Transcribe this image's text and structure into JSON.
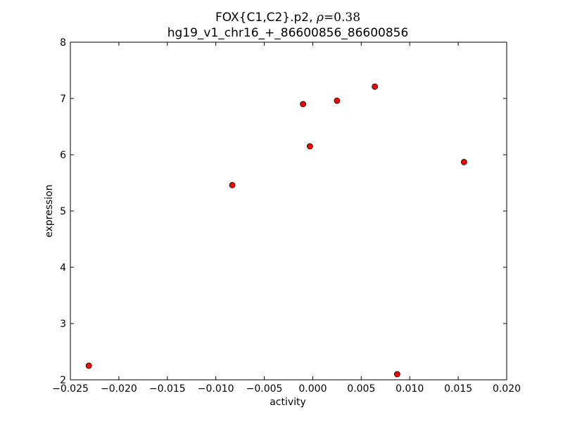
{
  "chart_data": {
    "type": "scatter",
    "title": "FOX{C1,C2}.p2, ρ=0.38",
    "title_parts": {
      "prefix": "FOX{C1,C2}.p2, ",
      "rho_symbol": "ρ",
      "equals": "=",
      "rho_value": "0.38"
    },
    "subtitle": "hg19_v1_chr16_+_86600856_86600856",
    "xlabel": "activity",
    "ylabel": "expression",
    "xlim": [
      -0.025,
      0.02
    ],
    "ylim": [
      2,
      8
    ],
    "x_ticks": [
      -0.025,
      -0.02,
      -0.015,
      -0.01,
      -0.005,
      0.0,
      0.005,
      0.01,
      0.015,
      0.02
    ],
    "x_tick_labels": [
      "−0.025",
      "−0.020",
      "−0.015",
      "−0.010",
      "−0.005",
      "0.000",
      "0.005",
      "0.010",
      "0.015",
      "0.020"
    ],
    "y_ticks": [
      2,
      3,
      4,
      5,
      6,
      7,
      8
    ],
    "y_tick_labels": [
      "2",
      "3",
      "4",
      "5",
      "6",
      "7",
      "8"
    ],
    "grid": false,
    "marker_color": "#ff0000",
    "marker_edge_color": "#000000",
    "points": [
      {
        "x": -0.0231,
        "y": 2.25
      },
      {
        "x": -0.0083,
        "y": 5.46
      },
      {
        "x": -0.001,
        "y": 6.9
      },
      {
        "x": -0.0003,
        "y": 6.15
      },
      {
        "x": 0.0025,
        "y": 6.96
      },
      {
        "x": 0.0064,
        "y": 7.21
      },
      {
        "x": 0.0087,
        "y": 2.1
      },
      {
        "x": 0.0156,
        "y": 5.87
      }
    ]
  }
}
